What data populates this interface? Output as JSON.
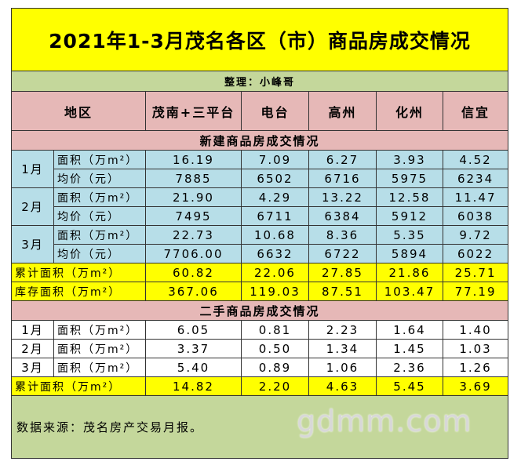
{
  "title": "2021年1-3月茂名各区（市）商品房成交情况",
  "credit": "整理：小峰哥",
  "header": [
    "地区",
    "茂南+三平台",
    "电台",
    "高州",
    "化州",
    "信宜"
  ],
  "sections": [
    {
      "title": "新建商品房成交情况",
      "months": [
        {
          "month": "1月",
          "rows": [
            {
              "label": "面积（万m²）",
              "values": [
                "16.19",
                "7.09",
                "6.27",
                "3.93",
                "4.52"
              ]
            },
            {
              "label": "均价（元）",
              "values": [
                "7885",
                "6502",
                "6716",
                "5975",
                "6234"
              ]
            }
          ]
        },
        {
          "month": "2月",
          "rows": [
            {
              "label": "面积（万m²）",
              "values": [
                "21.90",
                "4.29",
                "13.22",
                "12.58",
                "11.47"
              ]
            },
            {
              "label": "均价（元）",
              "values": [
                "7495",
                "6711",
                "6384",
                "5912",
                "6038"
              ]
            }
          ]
        },
        {
          "month": "3月",
          "rows": [
            {
              "label": "面积（万m²）",
              "values": [
                "22.73",
                "10.68",
                "8.36",
                "5.35",
                "9.72"
              ]
            },
            {
              "label": "均价（元）",
              "values": [
                "7706.00",
                "6632",
                "6722",
                "5894",
                "6022"
              ]
            }
          ]
        }
      ],
      "totals": [
        {
          "label": "累计面积（万m²）",
          "values": [
            "60.82",
            "22.06",
            "27.85",
            "21.86",
            "25.71"
          ]
        },
        {
          "label": "库存面积（万m²）",
          "values": [
            "367.06",
            "119.03",
            "87.51",
            "103.47",
            "77.19"
          ]
        }
      ]
    },
    {
      "title": "二手商品房成交情况",
      "months": [
        {
          "month": "1月",
          "rows": [
            {
              "label": "面积（万m²）",
              "values": [
                "6.05",
                "0.81",
                "2.23",
                "1.64",
                "1.40"
              ]
            }
          ]
        },
        {
          "month": "2月",
          "rows": [
            {
              "label": "面积（万m²）",
              "values": [
                "3.37",
                "0.50",
                "1.34",
                "1.45",
                "1.03"
              ]
            }
          ]
        },
        {
          "month": "3月",
          "rows": [
            {
              "label": "面积（万m²）",
              "values": [
                "5.40",
                "0.89",
                "1.06",
                "2.36",
                "1.26"
              ]
            }
          ]
        }
      ],
      "totals": [
        {
          "label": "累计面积（万m²）",
          "values": [
            "14.82",
            "2.20",
            "4.63",
            "5.45",
            "3.69"
          ]
        }
      ]
    }
  ],
  "footer": "数据来源：茂名房产交易月报。",
  "watermark": "gdmm.com"
}
